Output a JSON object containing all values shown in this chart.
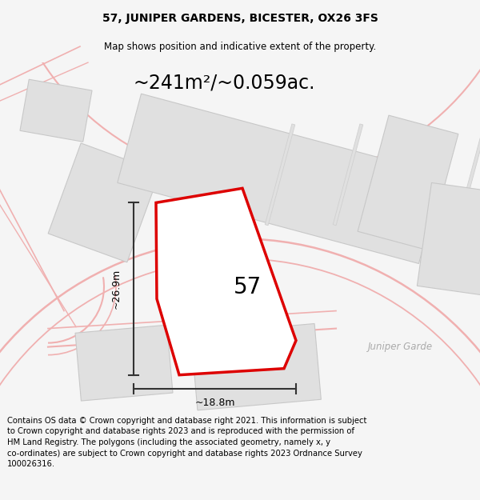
{
  "title_line1": "57, JUNIPER GARDENS, BICESTER, OX26 3FS",
  "title_line2": "Map shows position and indicative extent of the property.",
  "area_text": "~241m²/~0.059ac.",
  "number_label": "57",
  "dim_width": "~18.8m",
  "dim_height": "~26.9m",
  "street_label": "Juniper Garde",
  "footer_text": "Contains OS data © Crown copyright and database right 2021. This information is subject to Crown copyright and database rights 2023 and is reproduced with the permission of HM Land Registry. The polygons (including the associated geometry, namely x, y co-ordinates) are subject to Crown copyright and database rights 2023 Ordnance Survey 100026316.",
  "bg_color": "#f5f5f5",
  "map_bg": "#ffffff",
  "plot_stroke": "#dd0000",
  "neighbor_fill": "#e0e0e0",
  "neighbor_stroke": "#c8c8c8",
  "road_color": "#f0b0b0",
  "dim_color": "#333333",
  "title_fontsize": 10,
  "subtitle_fontsize": 8.5,
  "area_fontsize": 17,
  "number_fontsize": 20,
  "footer_fontsize": 7.2,
  "street_fontsize": 8.5
}
